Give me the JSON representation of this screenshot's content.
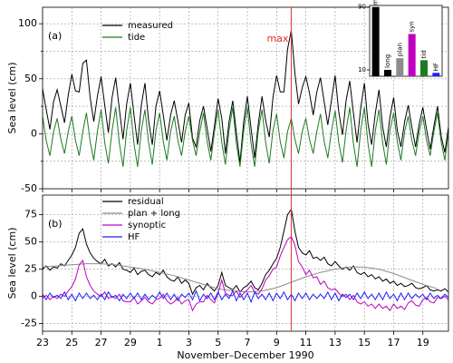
{
  "chart_data": [
    {
      "type": "line",
      "panel_label": "(a)",
      "ylabel": "Sea level (cm)",
      "ylim": [
        -50,
        115
      ],
      "yticks": [
        -50,
        0,
        50,
        100
      ],
      "yminor_ticks": [
        -25,
        25,
        75
      ],
      "grid": true,
      "annotation": "max",
      "annotation_color": "#e03030",
      "series": [
        {
          "name": "measured",
          "color": "#000000",
          "values": [
            41,
            22,
            4,
            29,
            40,
            25,
            10,
            35,
            54,
            39,
            38,
            64,
            67,
            33,
            11,
            34,
            52,
            26,
            1,
            33,
            51,
            22,
            -5,
            27,
            46,
            17,
            -10,
            26,
            46,
            12,
            -10,
            25,
            39,
            17,
            -6,
            17,
            30,
            12,
            -8,
            17,
            28,
            -4,
            -12,
            12,
            25,
            5,
            -16,
            7,
            32,
            14,
            -18,
            11,
            30,
            1,
            -26,
            11,
            34,
            5,
            -22,
            9,
            34,
            12,
            -3,
            33,
            53,
            38,
            38,
            77,
            94,
            55,
            27,
            42,
            52,
            37,
            17,
            38,
            51,
            29,
            8,
            30,
            53,
            20,
            -1,
            30,
            48,
            19,
            -8,
            23,
            46,
            9,
            -10,
            19,
            40,
            6,
            -12,
            15,
            33,
            3,
            -12,
            11,
            26,
            6,
            -12,
            9,
            24,
            4,
            -14,
            7,
            25,
            -2,
            -17,
            6
          ]
        },
        {
          "name": "tide",
          "color": "#1f7a1f",
          "values": [
            16,
            -6,
            -20,
            2,
            14,
            -5,
            -18,
            2,
            16,
            -6,
            -20,
            2,
            19,
            -7,
            -24,
            2,
            22,
            -8,
            -27,
            3,
            24,
            -9,
            -30,
            3,
            24,
            -9,
            -30,
            3,
            22,
            -8,
            -28,
            3,
            19,
            -7,
            -24,
            2,
            16,
            -6,
            -20,
            2,
            16,
            -6,
            -20,
            2,
            19,
            -7,
            -24,
            2,
            22,
            -8,
            -28,
            3,
            24,
            -9,
            -30,
            3,
            24,
            -9,
            -30,
            3,
            22,
            -8,
            -27,
            3,
            18,
            -7,
            -22,
            2,
            14,
            -5,
            -18,
            2,
            14,
            -5,
            -18,
            2,
            18,
            -7,
            -22,
            2,
            21,
            -8,
            -26,
            3,
            24,
            -9,
            -30,
            3,
            24,
            -9,
            -30,
            3,
            22,
            -8,
            -28,
            3,
            19,
            -7,
            -24,
            2,
            16,
            -6,
            -20,
            2,
            16,
            -6,
            -20,
            2,
            19,
            -7,
            -24,
            2
          ]
        }
      ]
    },
    {
      "type": "line",
      "panel_label": "(b)",
      "ylabel": "Sea level (cm)",
      "xlabel": "November–December 1990",
      "x": [
        0,
        0.25,
        0.5,
        0.75,
        1,
        1.25,
        1.5,
        1.75,
        2,
        2.25,
        2.5,
        2.75,
        3,
        3.25,
        3.5,
        3.75,
        4,
        4.25,
        4.5,
        4.75,
        5,
        5.25,
        5.5,
        5.75,
        6,
        6.25,
        6.5,
        6.75,
        7,
        7.25,
        7.5,
        7.75,
        8,
        8.25,
        8.5,
        8.75,
        9,
        9.25,
        9.5,
        9.75,
        10,
        10.25,
        10.5,
        10.75,
        11,
        11.25,
        11.5,
        11.75,
        12,
        12.25,
        12.5,
        12.75,
        13,
        13.25,
        13.5,
        13.75,
        14,
        14.25,
        14.5,
        14.75,
        15,
        15.25,
        15.5,
        15.75,
        16,
        16.25,
        16.5,
        16.75,
        17,
        17.25,
        17.5,
        17.75,
        18,
        18.25,
        18.5,
        18.75,
        19,
        19.25,
        19.5,
        19.75,
        20,
        20.25,
        20.5,
        20.75,
        21,
        21.25,
        21.5,
        21.75,
        22,
        22.25,
        22.5,
        22.75,
        23,
        23.25,
        23.5,
        23.75,
        24,
        24.25,
        24.5,
        24.75,
        25,
        25.25,
        25.5,
        25.75,
        26,
        26.25,
        26.5,
        26.75,
        27,
        27.25,
        27.5,
        27.75
      ],
      "xlim": [
        0,
        27.75
      ],
      "xticks": [
        {
          "value": 0,
          "label": "23"
        },
        {
          "value": 2,
          "label": "25"
        },
        {
          "value": 4,
          "label": "27"
        },
        {
          "value": 6,
          "label": "29"
        },
        {
          "value": 8,
          "label": "1"
        },
        {
          "value": 10,
          "label": "3"
        },
        {
          "value": 12,
          "label": "5"
        },
        {
          "value": 14,
          "label": "7"
        },
        {
          "value": 16,
          "label": "9"
        },
        {
          "value": 18,
          "label": "11"
        },
        {
          "value": 20,
          "label": "13"
        },
        {
          "value": 22,
          "label": "15"
        },
        {
          "value": 24,
          "label": "17"
        },
        {
          "value": 26,
          "label": "19"
        }
      ],
      "ylim": [
        -32,
        93
      ],
      "yticks": [
        -25,
        0,
        25,
        50,
        75
      ],
      "grid": true,
      "series": [
        {
          "name": "residual",
          "color": "#000000",
          "values": [
            25,
            28,
            24,
            27,
            26,
            30,
            28,
            33,
            38,
            45,
            58,
            62,
            48,
            40,
            35,
            32,
            30,
            34,
            28,
            30,
            27,
            31,
            25,
            24,
            22,
            26,
            20,
            23,
            24,
            20,
            18,
            22,
            20,
            24,
            18,
            15,
            14,
            18,
            12,
            15,
            12,
            2,
            8,
            10,
            6,
            12,
            8,
            5,
            10,
            22,
            10,
            8,
            6,
            10,
            4,
            8,
            10,
            14,
            8,
            6,
            12,
            20,
            24,
            30,
            35,
            45,
            60,
            75,
            80,
            60,
            45,
            40,
            38,
            42,
            35,
            36,
            33,
            36,
            30,
            28,
            32,
            28,
            25,
            27,
            24,
            28,
            22,
            20,
            22,
            18,
            20,
            16,
            18,
            14,
            16,
            12,
            14,
            10,
            12,
            9,
            10,
            12,
            8,
            7,
            8,
            10,
            6,
            5,
            6,
            5,
            7,
            4
          ]
        },
        {
          "name": "plan + long",
          "color": "#8c8c8c",
          "x": [
            0,
            1,
            2,
            3,
            4,
            5,
            6,
            7,
            8,
            9,
            10,
            11,
            12,
            13,
            14,
            15,
            16,
            17,
            18,
            19,
            20,
            21,
            22,
            23,
            24,
            25,
            26,
            27
          ],
          "values": [
            27,
            28,
            29,
            30,
            30,
            29,
            27,
            25,
            22,
            19,
            15,
            11,
            7,
            5,
            4,
            5,
            8,
            13,
            18,
            22,
            25,
            27,
            27,
            25,
            21,
            16,
            11,
            7
          ]
        },
        {
          "name": "synoptic",
          "color": "#c000c0",
          "values": [
            -2,
            1,
            -3,
            0,
            -2,
            2,
            0,
            5,
            9,
            16,
            29,
            33,
            18,
            10,
            5,
            2,
            0,
            4,
            -2,
            0,
            -2,
            2,
            -4,
            -5,
            -5,
            -1,
            -7,
            -4,
            -1,
            -5,
            -7,
            -3,
            -2,
            2,
            -4,
            -7,
            -5,
            -1,
            -7,
            -4,
            -3,
            -13,
            -7,
            -5,
            -5,
            1,
            -3,
            -6,
            3,
            15,
            3,
            1,
            1,
            5,
            -1,
            3,
            6,
            10,
            4,
            2,
            7,
            15,
            19,
            25,
            27,
            37,
            45,
            52,
            55,
            47,
            32,
            27,
            20,
            24,
            17,
            18,
            11,
            14,
            8,
            6,
            7,
            3,
            0,
            2,
            -3,
            1,
            -5,
            -7,
            -5,
            -9,
            -7,
            -11,
            -7,
            -11,
            -9,
            -13,
            -7,
            -11,
            -9,
            -12,
            -6,
            -4,
            -8,
            -9,
            -3,
            -1,
            -5,
            -6,
            -1,
            -2,
            0,
            -3
          ]
        },
        {
          "name": "HF",
          "color": "#2020ff",
          "values": [
            2,
            -3,
            3,
            -1,
            1,
            -2,
            4,
            -3,
            2,
            -4,
            3,
            -2,
            3,
            -2,
            1,
            -3,
            2,
            -3,
            4,
            -1,
            1,
            -4,
            2,
            -2,
            3,
            -2,
            3,
            -3,
            2,
            -3,
            1,
            -2,
            4,
            -2,
            3,
            -3,
            2,
            -4,
            2,
            -1,
            3,
            -3,
            5,
            -4,
            2,
            -2,
            3,
            -3,
            4,
            -3,
            2,
            -2,
            5,
            -4,
            3,
            -3,
            3,
            -5,
            4,
            -2,
            2,
            -3,
            3,
            -4,
            3,
            -2,
            4,
            -3,
            2,
            -4,
            3,
            -2,
            3,
            -3,
            2,
            -2,
            2,
            -2,
            4,
            -3,
            3,
            -4,
            2,
            -1,
            2,
            -3,
            3,
            -2,
            4,
            -2,
            2,
            -3,
            3,
            -3,
            4,
            -2,
            2,
            -4,
            3,
            -3,
            3,
            -2,
            2,
            -1,
            2,
            -3,
            3,
            -2,
            1,
            -2,
            2,
            -1
          ]
        }
      ]
    },
    {
      "type": "bar",
      "log": true,
      "categories": [
        "meas",
        "long",
        "plan",
        "syn",
        "tid",
        "HF"
      ],
      "values": [
        90,
        10,
        15,
        35,
        14,
        9
      ],
      "colors": [
        "#000000",
        "#000000",
        "#8c8c8c",
        "#c000c0",
        "#1f7a1f",
        "#2020ff"
      ],
      "ylim": [
        8,
        95
      ],
      "yticks": [
        10,
        90
      ]
    }
  ]
}
